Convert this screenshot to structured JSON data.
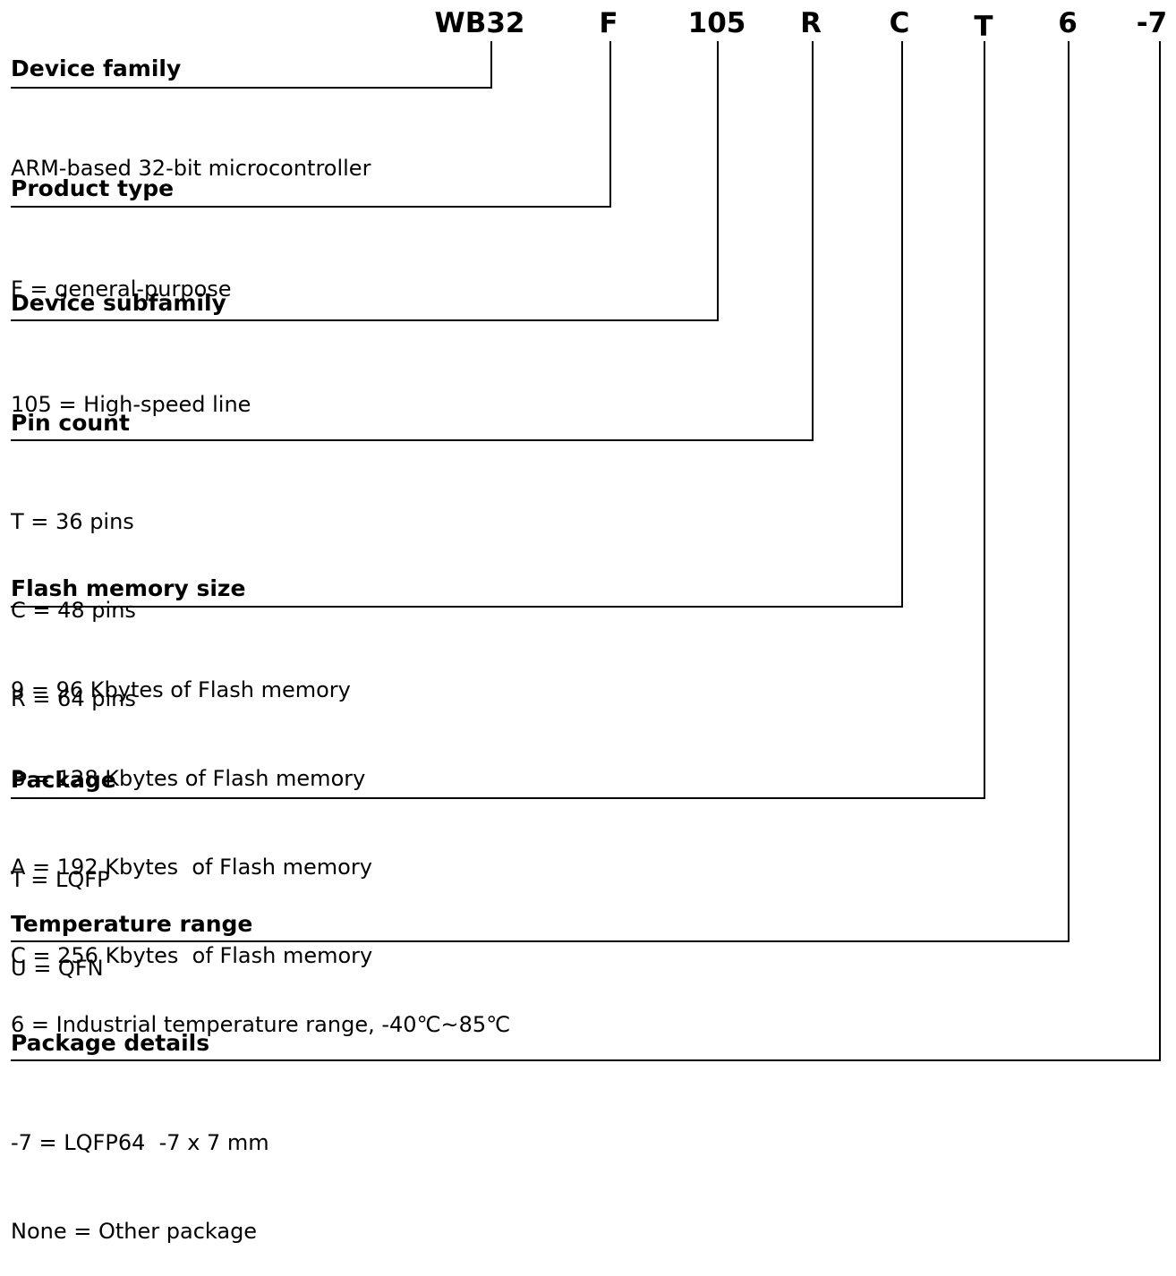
{
  "code_segments": [
    "WB32",
    "F",
    "105",
    "R",
    "C",
    "T",
    "6",
    "-7"
  ],
  "sections": [
    {
      "title": "Device family",
      "lines": [
        "ARM-based 32-bit microcontroller"
      ]
    },
    {
      "title": "Product type",
      "lines": [
        "F = general-purpose"
      ]
    },
    {
      "title": "Device subfamily",
      "lines": [
        "105 = High-speed line"
      ]
    },
    {
      "title": "Pin count",
      "lines": [
        "T = 36 pins",
        "C = 48 pins",
        "R = 64 pins"
      ]
    },
    {
      "title": "Flash memory size",
      "lines": [
        "9 = 96 Kbytes of Flash memory",
        "B = 128 Kbytes of Flash memory",
        "A = 192 Kbytes  of Flash memory",
        "C = 256 Kbytes  of Flash memory"
      ]
    },
    {
      "title": "Package",
      "lines": [
        "T = LQFP",
        "U = QFN"
      ]
    },
    {
      "title": "Temperature range",
      "lines": [
        "6 = Industrial temperature range, -40℃~85℃"
      ]
    },
    {
      "title": "Package details",
      "lines": [
        "-7 = LQFP64  -7 x 7 mm",
        "None = Other package"
      ]
    }
  ]
}
